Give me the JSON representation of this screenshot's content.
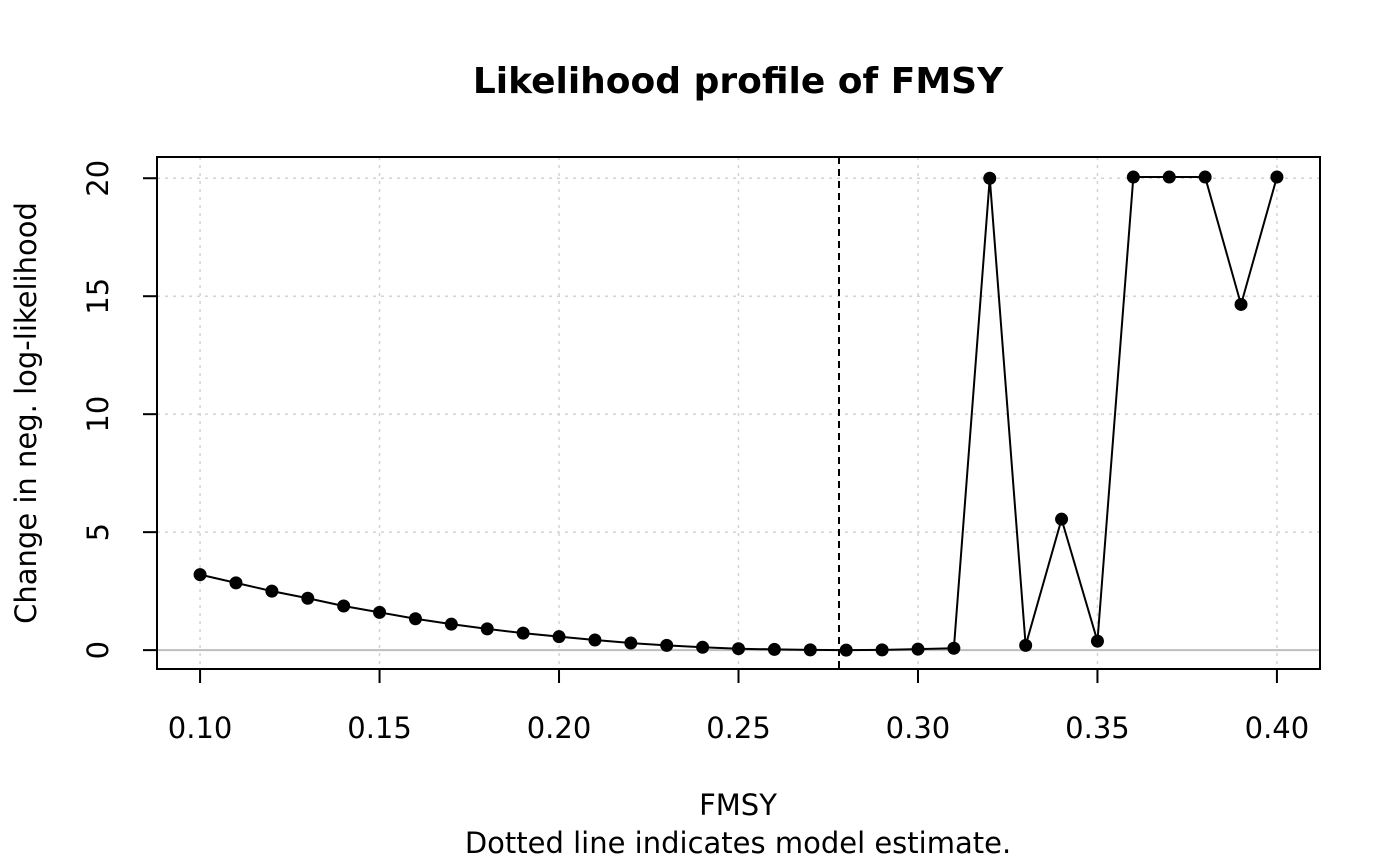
{
  "chart_data": {
    "type": "line",
    "title": "Likelihood profile of FMSY",
    "xlabel": "FMSY",
    "subtitle": "Dotted line indicates model estimate.",
    "ylabel": "Change in neg. log-likelihood",
    "xlim": [
      0.088,
      0.412
    ],
    "ylim": [
      -0.8,
      20.9
    ],
    "x_ticks": [
      "0.10",
      "0.15",
      "0.20",
      "0.25",
      "0.30",
      "0.35",
      "0.40"
    ],
    "y_ticks": [
      "0",
      "5",
      "10",
      "15",
      "20"
    ],
    "grid": true,
    "reference_line_y": 0,
    "estimate_x": 0.278,
    "series": [
      {
        "x": [
          0.1,
          0.11,
          0.12,
          0.13,
          0.14,
          0.15,
          0.16,
          0.17,
          0.18,
          0.19,
          0.2,
          0.21,
          0.22,
          0.23,
          0.24,
          0.25,
          0.26,
          0.27,
          0.28,
          0.29,
          0.3,
          0.31,
          0.32,
          0.33,
          0.34,
          0.35,
          0.36,
          0.37,
          0.38,
          0.39,
          0.4
        ],
        "values": [
          3.2,
          2.85,
          2.5,
          2.2,
          1.87,
          1.6,
          1.33,
          1.1,
          0.9,
          0.72,
          0.57,
          0.43,
          0.3,
          0.2,
          0.12,
          0.06,
          0.03,
          0.01,
          0.0,
          0.01,
          0.04,
          0.08,
          20.0,
          0.2,
          5.55,
          0.38,
          20.05,
          20.05,
          20.05,
          14.65,
          20.05
        ]
      }
    ],
    "colors": {
      "line": "#000000",
      "points": "#000000",
      "grid": "#d3d3d3",
      "zero_line": "#bebebe",
      "estimate_line": "#000000"
    }
  }
}
